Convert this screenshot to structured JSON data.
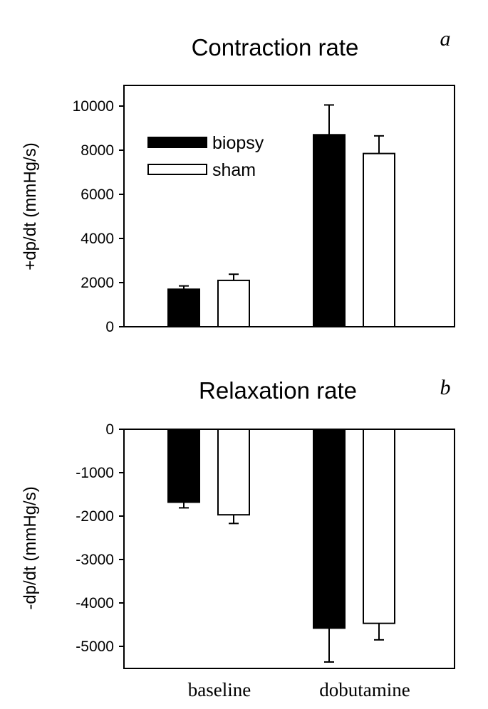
{
  "chart_data": [
    {
      "type": "bar",
      "title": "Contraction rate",
      "panel_label": "a",
      "ylabel": "+dp/dt (mmHg/s)",
      "ylim": [
        0,
        10500
      ],
      "yticks": [
        0,
        2000,
        4000,
        6000,
        8000,
        10000
      ],
      "categories": [
        "baseline",
        "dobutamine"
      ],
      "series": [
        {
          "name": "biopsy",
          "color": "#000000",
          "values": [
            1700,
            8700
          ],
          "errors": [
            150,
            1350
          ]
        },
        {
          "name": "sham",
          "color": "#ffffff",
          "values": [
            2100,
            7850
          ],
          "errors": [
            280,
            800
          ]
        }
      ],
      "legend_position": "top-left",
      "grid": false
    },
    {
      "type": "bar",
      "title": "Relaxation rate",
      "panel_label": "b",
      "ylabel": "-dp/dt (mmHg/s)",
      "ylim": [
        -5500,
        0
      ],
      "yticks": [
        0,
        -1000,
        -2000,
        -3000,
        -4000,
        -5000
      ],
      "categories": [
        "baseline",
        "dobutamine"
      ],
      "series": [
        {
          "name": "biopsy",
          "color": "#000000",
          "values": [
            -1680,
            -4580
          ],
          "errors": [
            130,
            780
          ]
        },
        {
          "name": "sham",
          "color": "#ffffff",
          "values": [
            -1970,
            -4470
          ],
          "errors": [
            200,
            380
          ]
        }
      ],
      "grid": false
    }
  ]
}
